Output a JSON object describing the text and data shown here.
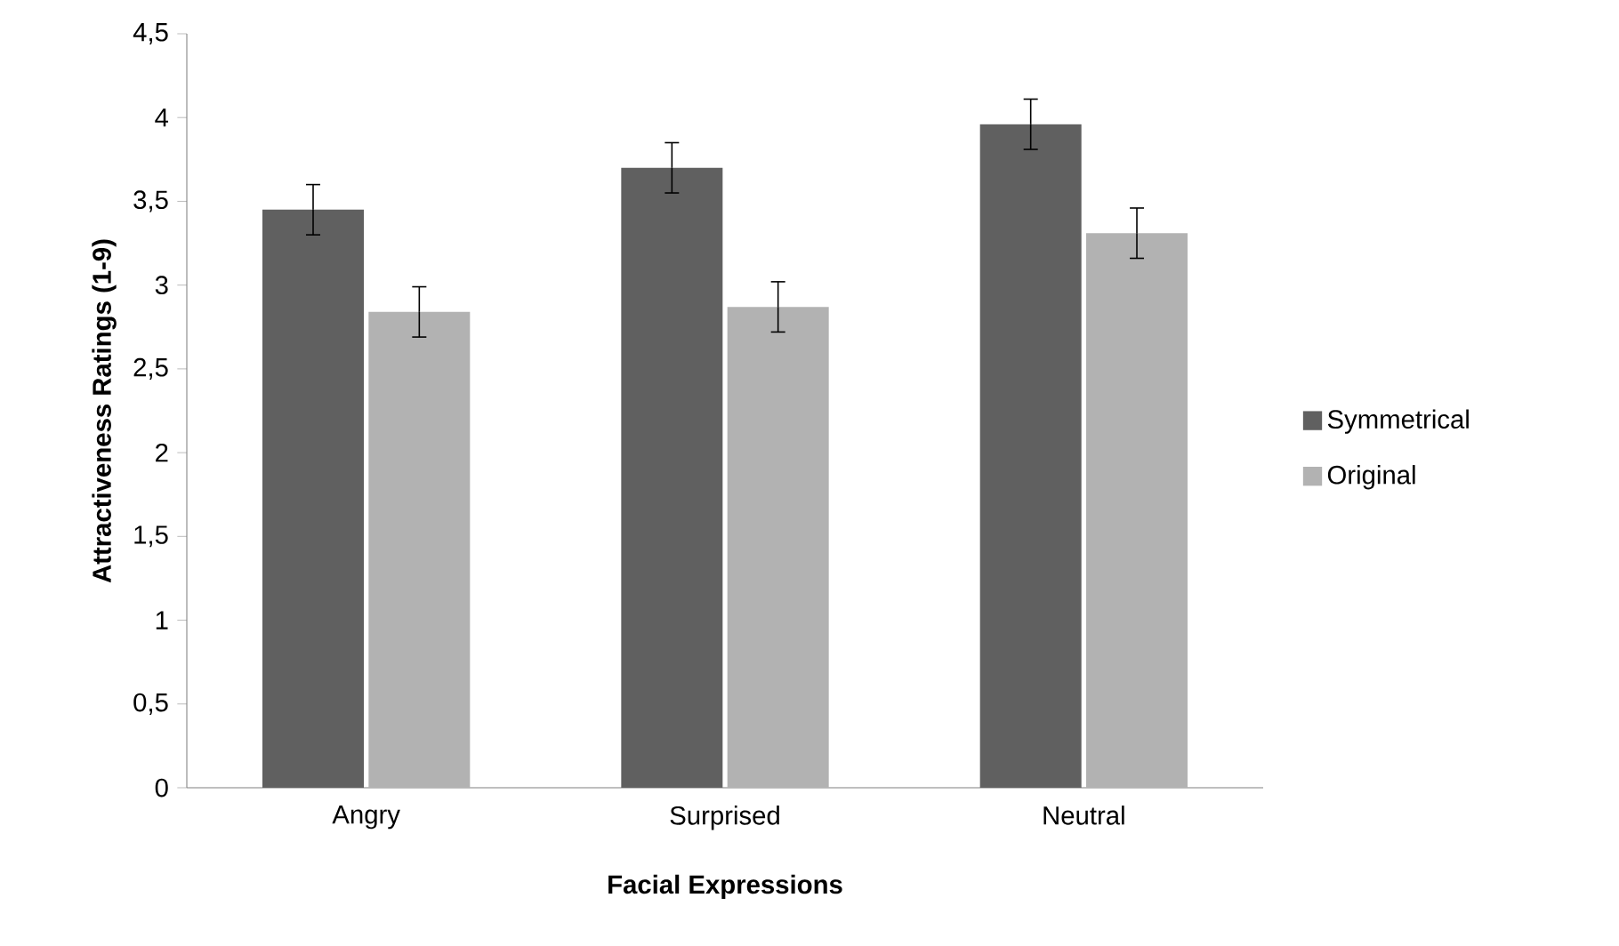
{
  "chart_data": {
    "type": "bar",
    "xlabel": "Facial Expressions",
    "ylabel": "Attractiveness Ratings (1-9)",
    "categories": [
      "Angry",
      "Surprised",
      "Neutral"
    ],
    "series": [
      {
        "name": "Symmetrical",
        "color": "#606060",
        "values": [
          3.45,
          3.7,
          3.96
        ],
        "errors": [
          0.15,
          0.15,
          0.15
        ]
      },
      {
        "name": "Original",
        "color": "#b2b2b2",
        "values": [
          2.84,
          2.87,
          3.31
        ],
        "errors": [
          0.15,
          0.15,
          0.15
        ]
      }
    ],
    "ylim": [
      0,
      4.5
    ],
    "yticks": [
      0,
      {
        "value": 0.5,
        "label": "0,5"
      },
      1,
      {
        "value": 1.5,
        "label": "1,5"
      },
      2,
      {
        "value": 2.5,
        "label": "2,5"
      },
      3,
      {
        "value": 3.5,
        "label": "3,5"
      },
      4,
      {
        "value": 4.5,
        "label": "4,5"
      }
    ],
    "legend": "right"
  }
}
